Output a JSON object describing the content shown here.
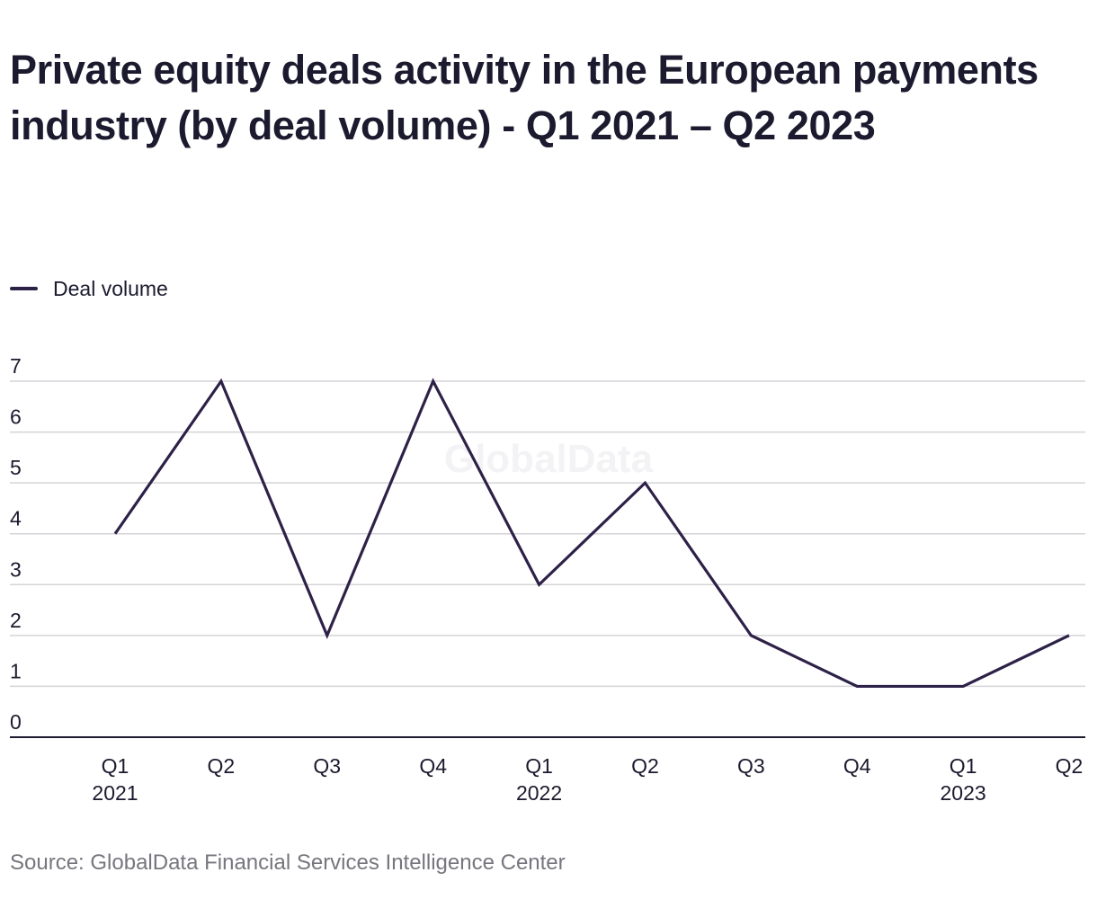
{
  "chart_data": {
    "type": "line",
    "title": "Private equity deals activity in the European payments industry (by deal volume) - Q1 2021 – Q2 2023",
    "categories": [
      "Q1",
      "Q2",
      "Q3",
      "Q4",
      "Q1",
      "Q2",
      "Q3",
      "Q4",
      "Q1",
      "Q2"
    ],
    "year_labels": [
      "2021",
      "",
      "",
      "",
      "2022",
      "",
      "",
      "",
      "2023",
      ""
    ],
    "series": [
      {
        "name": "Deal volume",
        "values": [
          4,
          7,
          2,
          7,
          3,
          5,
          2,
          1,
          1,
          2
        ],
        "color": "#2e2148"
      }
    ],
    "ylim": [
      0,
      7
    ],
    "yticks": [
      0,
      1,
      2,
      3,
      4,
      5,
      6,
      7
    ],
    "xlabel": "",
    "ylabel": "",
    "grid": true,
    "legend_position": "top-left",
    "watermark": "GlobalData",
    "gridline_color": "#d4d4d8",
    "axis_color": "#1b1a2e"
  },
  "source": "Source: GlobalData Financial Services Intelligence Center"
}
